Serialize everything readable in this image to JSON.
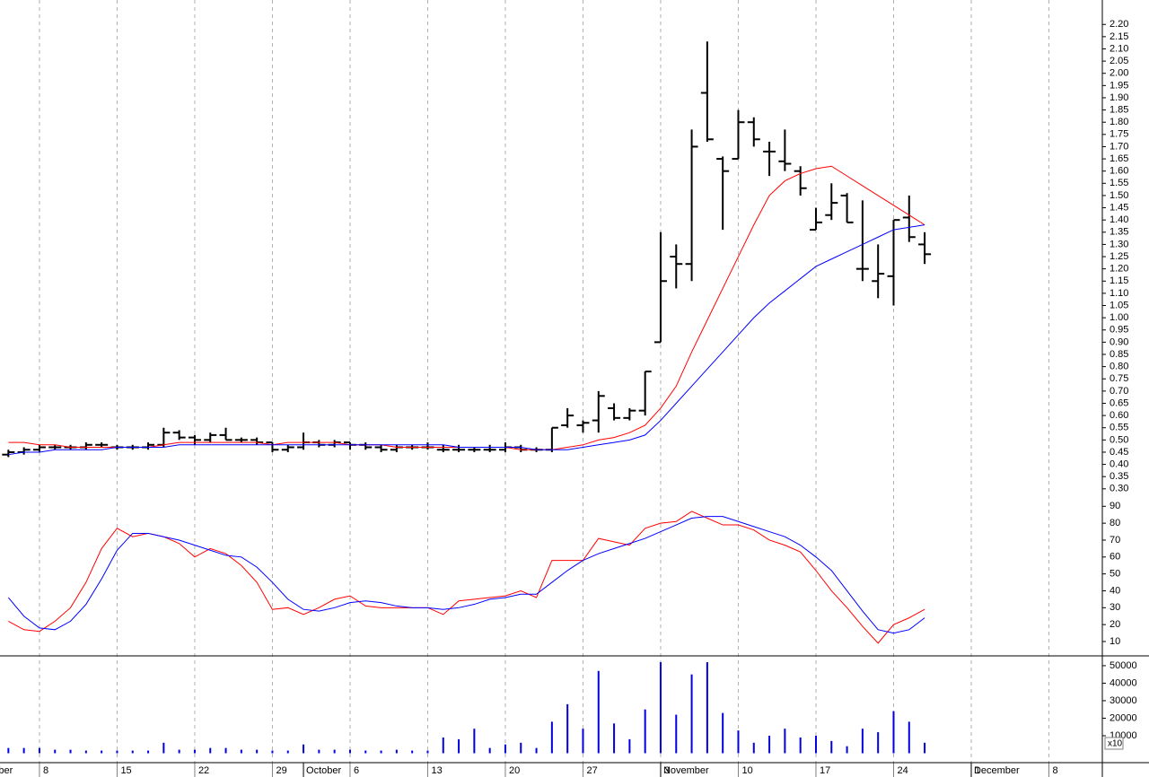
{
  "chart_data": [
    {
      "type": "ohlc",
      "color": "#000000",
      "x": [
        -2,
        -1,
        0,
        1,
        2,
        3,
        4,
        5,
        6,
        7,
        8,
        9,
        10,
        11,
        12,
        13,
        14,
        15,
        16,
        17,
        18,
        19,
        20,
        21,
        22,
        23,
        24,
        25,
        26,
        27,
        28,
        29,
        30,
        31,
        32,
        33,
        34,
        35,
        36,
        37,
        38,
        39,
        40,
        41,
        42,
        43,
        44,
        45,
        46,
        47,
        48,
        49,
        50,
        51,
        52,
        53,
        54,
        55,
        56,
        57
      ],
      "open": [
        0.44,
        0.45,
        0.46,
        0.47,
        0.47,
        0.47,
        0.48,
        0.47,
        0.47,
        0.47,
        0.48,
        0.53,
        0.51,
        0.5,
        0.52,
        0.5,
        0.5,
        0.49,
        0.46,
        0.47,
        0.49,
        0.48,
        0.49,
        0.48,
        0.47,
        0.46,
        0.47,
        0.47,
        0.46,
        0.46,
        0.46,
        0.46,
        0.46,
        0.47,
        0.46,
        0.46,
        0.56,
        0.56,
        0.58,
        0.63,
        0.59,
        0.62,
        0.9,
        1.25,
        1.22,
        1.92,
        1.65,
        1.65,
        1.8,
        1.68,
        1.64,
        1.6,
        1.36,
        1.42,
        1.5,
        1.2,
        1.15,
        1.17,
        1.41,
        1.3
      ],
      "high": [
        0.46,
        0.47,
        0.48,
        0.48,
        0.48,
        0.49,
        0.49,
        0.48,
        0.48,
        0.49,
        0.55,
        0.54,
        0.52,
        0.53,
        0.55,
        0.51,
        0.51,
        0.49,
        0.48,
        0.53,
        0.5,
        0.5,
        0.49,
        0.49,
        0.48,
        0.48,
        0.48,
        0.49,
        0.48,
        0.48,
        0.47,
        0.48,
        0.49,
        0.48,
        0.47,
        0.55,
        0.63,
        0.58,
        0.7,
        0.65,
        0.63,
        0.78,
        1.35,
        1.3,
        1.77,
        2.13,
        1.66,
        1.85,
        1.82,
        1.72,
        1.77,
        1.62,
        1.45,
        1.55,
        1.51,
        1.48,
        1.3,
        1.4,
        1.5,
        1.35
      ],
      "low": [
        0.43,
        0.44,
        0.45,
        0.46,
        0.46,
        0.46,
        0.47,
        0.46,
        0.46,
        0.46,
        0.47,
        0.5,
        0.48,
        0.49,
        0.5,
        0.49,
        0.48,
        0.45,
        0.45,
        0.46,
        0.47,
        0.47,
        0.46,
        0.46,
        0.45,
        0.45,
        0.46,
        0.46,
        0.45,
        0.45,
        0.45,
        0.45,
        0.45,
        0.45,
        0.45,
        0.45,
        0.55,
        0.53,
        0.53,
        0.58,
        0.58,
        0.6,
        0.9,
        1.12,
        1.15,
        1.72,
        1.36,
        1.65,
        1.7,
        1.58,
        1.6,
        1.5,
        1.36,
        1.4,
        1.39,
        1.15,
        1.08,
        1.05,
        1.31,
        1.22
      ],
      "close": [
        0.45,
        0.46,
        0.47,
        0.47,
        0.47,
        0.48,
        0.48,
        0.47,
        0.47,
        0.48,
        0.53,
        0.51,
        0.5,
        0.52,
        0.5,
        0.5,
        0.49,
        0.46,
        0.47,
        0.49,
        0.48,
        0.49,
        0.48,
        0.47,
        0.46,
        0.47,
        0.47,
        0.47,
        0.46,
        0.46,
        0.46,
        0.46,
        0.47,
        0.46,
        0.46,
        0.55,
        0.6,
        0.57,
        0.68,
        0.59,
        0.62,
        0.78,
        1.15,
        1.22,
        1.7,
        1.73,
        1.6,
        1.8,
        1.73,
        1.68,
        1.63,
        1.53,
        1.39,
        1.47,
        1.39,
        1.2,
        1.18,
        1.4,
        1.33,
        1.26
      ],
      "lines": [
        {
          "color": "#ff0000",
          "values": [
            0.49,
            0.49,
            0.48,
            0.48,
            0.47,
            0.47,
            0.47,
            0.47,
            0.47,
            0.47,
            0.48,
            0.49,
            0.49,
            0.49,
            0.49,
            0.49,
            0.49,
            0.48,
            0.49,
            0.49,
            0.49,
            0.49,
            0.48,
            0.48,
            0.48,
            0.47,
            0.47,
            0.47,
            0.47,
            0.47,
            0.47,
            0.47,
            0.47,
            0.46,
            0.46,
            0.46,
            0.47,
            0.48,
            0.5,
            0.51,
            0.53,
            0.56,
            0.63,
            0.72,
            0.86,
            0.99,
            1.12,
            1.25,
            1.38,
            1.5,
            1.56,
            1.59,
            1.61,
            1.62,
            1.58,
            1.54,
            1.5,
            1.46,
            1.42,
            1.38
          ]
        },
        {
          "color": "#0000ff",
          "values": [
            0.44,
            0.45,
            0.45,
            0.46,
            0.46,
            0.46,
            0.46,
            0.47,
            0.47,
            0.47,
            0.47,
            0.48,
            0.48,
            0.48,
            0.48,
            0.48,
            0.48,
            0.48,
            0.48,
            0.48,
            0.48,
            0.48,
            0.48,
            0.48,
            0.48,
            0.48,
            0.48,
            0.48,
            0.48,
            0.47,
            0.47,
            0.47,
            0.47,
            0.47,
            0.46,
            0.46,
            0.46,
            0.47,
            0.48,
            0.49,
            0.5,
            0.52,
            0.58,
            0.65,
            0.72,
            0.79,
            0.86,
            0.93,
            1.0,
            1.06,
            1.11,
            1.16,
            1.21,
            1.24,
            1.27,
            1.3,
            1.33,
            1.36,
            1.37,
            1.38
          ]
        }
      ],
      "ylim": [
        0.27,
        2.3
      ],
      "yticks": [
        {
          "value": 0.3,
          "label": "0.30"
        },
        0.35,
        {
          "value": 0.4,
          "label": "0.40"
        },
        0.45,
        {
          "value": 0.5,
          "label": "0.50"
        },
        0.55,
        {
          "value": 0.6,
          "label": "0.60"
        },
        0.65,
        {
          "value": 0.7,
          "label": "0.70"
        },
        0.75,
        {
          "value": 0.8,
          "label": "0.80"
        },
        0.85,
        {
          "value": 0.9,
          "label": "0.90"
        },
        0.95,
        {
          "value": 1,
          "label": "1.00"
        },
        1.05,
        {
          "value": 1.1,
          "label": "1.10"
        },
        1.15,
        {
          "value": 1.2,
          "label": "1.20"
        },
        1.25,
        {
          "value": 1.3,
          "label": "1.30"
        },
        1.35,
        {
          "value": 1.4,
          "label": "1.40"
        },
        1.45,
        {
          "value": 1.5,
          "label": "1.50"
        },
        1.55,
        {
          "value": 1.6,
          "label": "1.60"
        },
        1.65,
        {
          "value": 1.7,
          "label": "1.70"
        },
        1.75,
        {
          "value": 1.8,
          "label": "1.80"
        },
        1.85,
        {
          "value": 1.9,
          "label": "1.90"
        },
        1.95,
        {
          "value": 2,
          "label": "2.00"
        },
        2.05,
        {
          "value": 2.1,
          "label": "2.10"
        },
        2.15,
        {
          "value": 2.2,
          "label": "2.20"
        }
      ]
    },
    {
      "type": "line",
      "x": [
        -2,
        -1,
        0,
        1,
        2,
        3,
        4,
        5,
        6,
        7,
        8,
        9,
        10,
        11,
        12,
        13,
        14,
        15,
        16,
        17,
        18,
        19,
        20,
        21,
        22,
        23,
        24,
        25,
        26,
        27,
        28,
        29,
        30,
        31,
        32,
        33,
        34,
        35,
        36,
        37,
        38,
        39,
        40,
        41,
        42,
        43,
        44,
        45,
        46,
        47,
        48,
        49,
        50,
        51,
        52,
        53,
        54,
        55,
        56,
        57
      ],
      "series": [
        {
          "color": "#ff0000",
          "values": [
            22,
            17,
            16,
            22,
            30,
            45,
            65,
            77,
            72,
            74,
            72,
            68,
            60,
            65,
            62,
            55,
            45,
            29,
            30,
            26,
            30,
            35,
            37,
            31,
            30,
            30,
            30,
            30,
            26,
            34,
            35,
            36,
            37,
            40,
            36,
            58,
            58,
            58,
            71,
            69,
            67,
            77,
            80,
            81,
            87,
            83,
            79,
            79,
            76,
            70,
            67,
            63,
            52,
            40,
            30,
            19,
            9,
            20,
            24,
            29
          ]
        },
        {
          "color": "#0000ff",
          "values": [
            36,
            25,
            18,
            17,
            22,
            32,
            47,
            64,
            74,
            74,
            72,
            70,
            67,
            64,
            61,
            60,
            54,
            45,
            35,
            29,
            28,
            30,
            33,
            34,
            33,
            31,
            30,
            30,
            29,
            30,
            32,
            35,
            36,
            38,
            38,
            45,
            52,
            58,
            62,
            65,
            68,
            71,
            75,
            79,
            83,
            84,
            84,
            81,
            78,
            75,
            72,
            67,
            60,
            52,
            40,
            28,
            17,
            15,
            17,
            24
          ]
        }
      ],
      "ylim": [
        1.5,
        96
      ],
      "yticks": [
        10,
        20,
        30,
        40,
        50,
        60,
        70,
        80,
        90
      ]
    },
    {
      "type": "bar",
      "color": "#0000e0",
      "x": [
        -2,
        -1,
        0,
        1,
        2,
        3,
        4,
        5,
        6,
        7,
        8,
        9,
        10,
        11,
        12,
        13,
        14,
        15,
        16,
        17,
        18,
        19,
        20,
        21,
        22,
        23,
        24,
        25,
        26,
        27,
        28,
        29,
        30,
        31,
        32,
        33,
        34,
        35,
        36,
        37,
        38,
        39,
        40,
        41,
        42,
        43,
        44,
        45,
        46,
        47,
        48,
        49,
        50,
        51,
        52,
        53,
        54,
        55,
        56,
        57
      ],
      "values": [
        3000,
        3000,
        3000,
        2000,
        2000,
        1500,
        1500,
        1500,
        1500,
        1500,
        6000,
        2000,
        2000,
        3000,
        3000,
        2000,
        2000,
        1500,
        1500,
        5000,
        2000,
        2000,
        2000,
        1500,
        1500,
        2000,
        1500,
        1500,
        9000,
        8000,
        14000,
        3000,
        5000,
        6000,
        3000,
        18000,
        28000,
        14000,
        47000,
        17000,
        8000,
        25000,
        52000,
        22000,
        45000,
        52000,
        23000,
        13000,
        6000,
        10000,
        14000,
        9000,
        10000,
        7000,
        4000,
        14000,
        12000,
        24000,
        18000,
        6000
      ],
      "ylim": [
        0,
        55600
      ],
      "yticks": [
        10000,
        20000,
        30000,
        40000,
        50000
      ],
      "multiplier_label": "x10",
      "xlim": [
        -2.54,
        68.44
      ],
      "xticks": [
        {
          "value": 0,
          "label": "8"
        },
        {
          "value": 5,
          "label": "15"
        },
        {
          "value": 10,
          "label": "22"
        },
        {
          "value": 15,
          "label": "29"
        },
        {
          "value": 20,
          "label": "6"
        },
        {
          "value": 25,
          "label": "13"
        },
        {
          "value": 30,
          "label": "20"
        },
        {
          "value": 35,
          "label": "27"
        },
        {
          "value": 40,
          "label": "3"
        },
        {
          "value": 45,
          "label": "10"
        },
        {
          "value": 50,
          "label": "17"
        },
        {
          "value": 55,
          "label": "24"
        },
        {
          "value": 60,
          "label": "1"
        },
        {
          "value": 65,
          "label": "8"
        }
      ],
      "month_ticks": [
        {
          "value": -5,
          "label": "September"
        },
        {
          "value": 17,
          "label": "October"
        },
        {
          "value": 40,
          "label": "November"
        },
        {
          "value": 60,
          "label": "December"
        }
      ]
    }
  ]
}
